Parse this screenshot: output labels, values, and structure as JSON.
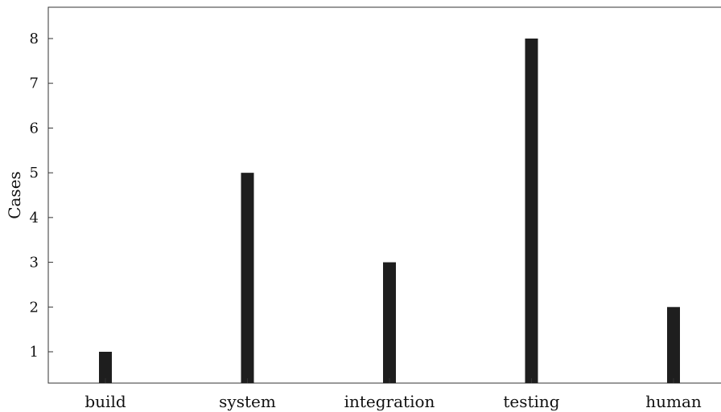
{
  "chart_data": {
    "type": "bar",
    "categories": [
      "build",
      "system",
      "integration",
      "testing",
      "human"
    ],
    "values": [
      1,
      5,
      3,
      8,
      2
    ],
    "title": "",
    "xlabel": "",
    "ylabel": "Cases",
    "ylim": [
      0.3,
      8.7
    ],
    "yticks": [
      1,
      2,
      3,
      4,
      5,
      6,
      7,
      8
    ],
    "grid": false,
    "bar_color": "#1e1e1e"
  }
}
